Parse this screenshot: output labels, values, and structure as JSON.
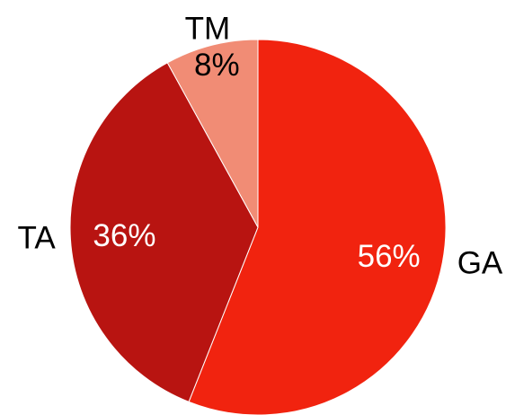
{
  "chart_data": {
    "type": "pie",
    "title": "",
    "categories": [
      "GA",
      "TA",
      "TM"
    ],
    "values": [
      56,
      36,
      8
    ],
    "value_labels": [
      "56%",
      "36%",
      "8%"
    ],
    "colors": [
      "#f1230f",
      "#b81411",
      "#f18c75"
    ],
    "start_angle": "12 o'clock",
    "direction": "clockwise",
    "category_label_color": "#000000",
    "value_label_colors": [
      "#ffffff",
      "#ffffff",
      "#000000"
    ],
    "legend": "none"
  }
}
